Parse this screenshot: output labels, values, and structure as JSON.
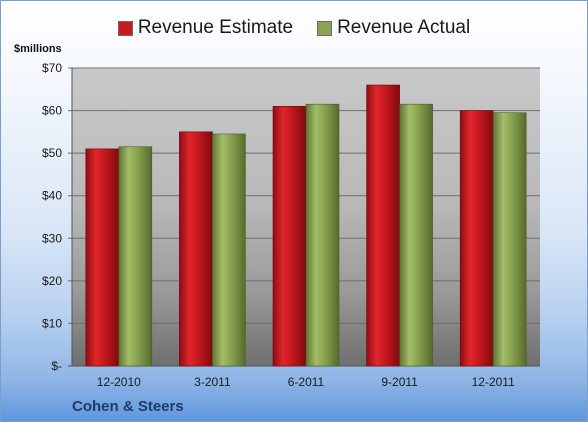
{
  "colors": {
    "estimate": "#c8191f",
    "actual": "#8aa350"
  },
  "chart_data": {
    "type": "bar",
    "title": "",
    "ylabel": "$millions",
    "xlabel": "",
    "categories": [
      "12-2010",
      "3-2011",
      "6-2011",
      "9-2011",
      "12-2011"
    ],
    "series": [
      {
        "name": "Revenue Estimate",
        "values": [
          51,
          55,
          61,
          66,
          60
        ]
      },
      {
        "name": "Revenue Actual",
        "values": [
          51.5,
          54.5,
          61.5,
          61.5,
          59.5
        ]
      }
    ],
    "ylim": [
      0,
      70
    ],
    "y_ticks": [
      {
        "value": 0,
        "label": "$-"
      },
      {
        "value": 10,
        "label": "$10"
      },
      {
        "value": 20,
        "label": "$20"
      },
      {
        "value": 30,
        "label": "$30"
      },
      {
        "value": 40,
        "label": "$40"
      },
      {
        "value": 50,
        "label": "$50"
      },
      {
        "value": 60,
        "label": "$60"
      },
      {
        "value": 70,
        "label": "$70"
      }
    ],
    "grid": true,
    "legend_position": "top"
  },
  "legend": {
    "estimate_label": "Revenue Estimate",
    "actual_label": "Revenue Actual"
  },
  "footer": {
    "company": "Cohen & Steers"
  }
}
